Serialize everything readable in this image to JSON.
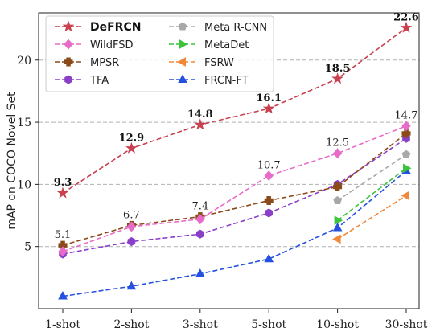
{
  "chart_data": {
    "type": "line",
    "categories": [
      "1-shot",
      "2-shot",
      "3-shot",
      "5-shot",
      "10-shot",
      "30-shot"
    ],
    "ylabel": "mAP on COCO Novel Set",
    "xlabel": "",
    "ylim": [
      0,
      23.8
    ],
    "yticks": [
      5,
      10,
      15,
      20
    ],
    "grid": "horizontal-dashed",
    "legend": "top-left",
    "series": [
      {
        "name": "DeFRCN",
        "color": "#c94150",
        "marker": "star",
        "bold": true,
        "values": [
          9.3,
          12.9,
          14.8,
          16.1,
          18.5,
          22.6
        ],
        "labels": [
          "9.3",
          "12.9",
          "14.8",
          "16.1",
          "18.5",
          "22.6"
        ],
        "label_bold": true
      },
      {
        "name": "WildFSD",
        "color": "#e86bc9",
        "marker": "diamond",
        "values": [
          4.6,
          6.6,
          7.2,
          10.7,
          12.5,
          14.7
        ],
        "labels": [
          "",
          "",
          "",
          "10.7",
          "12.5",
          "14.7"
        ]
      },
      {
        "name": "MPSR",
        "color": "#8b4a1a",
        "marker": "plus",
        "values": [
          5.1,
          6.7,
          7.4,
          8.7,
          9.8,
          14.1
        ],
        "labels": [
          "5.1",
          "6.7",
          "7.4",
          "",
          "",
          ""
        ]
      },
      {
        "name": "TFA",
        "color": "#8a3fc9",
        "marker": "hexagon",
        "values": [
          4.4,
          5.4,
          6.0,
          7.7,
          10.0,
          13.7
        ],
        "labels": [
          "",
          "",
          "",
          "",
          "",
          ""
        ]
      },
      {
        "name": "Meta R-CNN",
        "color": "#a8a8a8",
        "marker": "pentagon",
        "values": [
          null,
          null,
          null,
          null,
          8.7,
          12.4
        ],
        "labels": [
          "",
          "",
          "",
          "",
          "",
          ""
        ]
      },
      {
        "name": "MetaDet",
        "color": "#3dc43d",
        "marker": "triangle-right",
        "values": [
          null,
          null,
          null,
          null,
          7.1,
          11.3
        ],
        "labels": [
          "",
          "",
          "",
          "",
          "",
          ""
        ]
      },
      {
        "name": "FSRW",
        "color": "#f0883a",
        "marker": "triangle-left",
        "values": [
          null,
          null,
          null,
          null,
          5.6,
          9.1
        ],
        "labels": [
          "",
          "",
          "",
          "",
          "",
          ""
        ]
      },
      {
        "name": "FRCN-FT",
        "color": "#2550e0",
        "marker": "triangle-up",
        "values": [
          1.0,
          1.8,
          2.8,
          4.0,
          6.5,
          11.1
        ],
        "labels": [
          "",
          "",
          "",
          "",
          "",
          ""
        ]
      }
    ]
  }
}
